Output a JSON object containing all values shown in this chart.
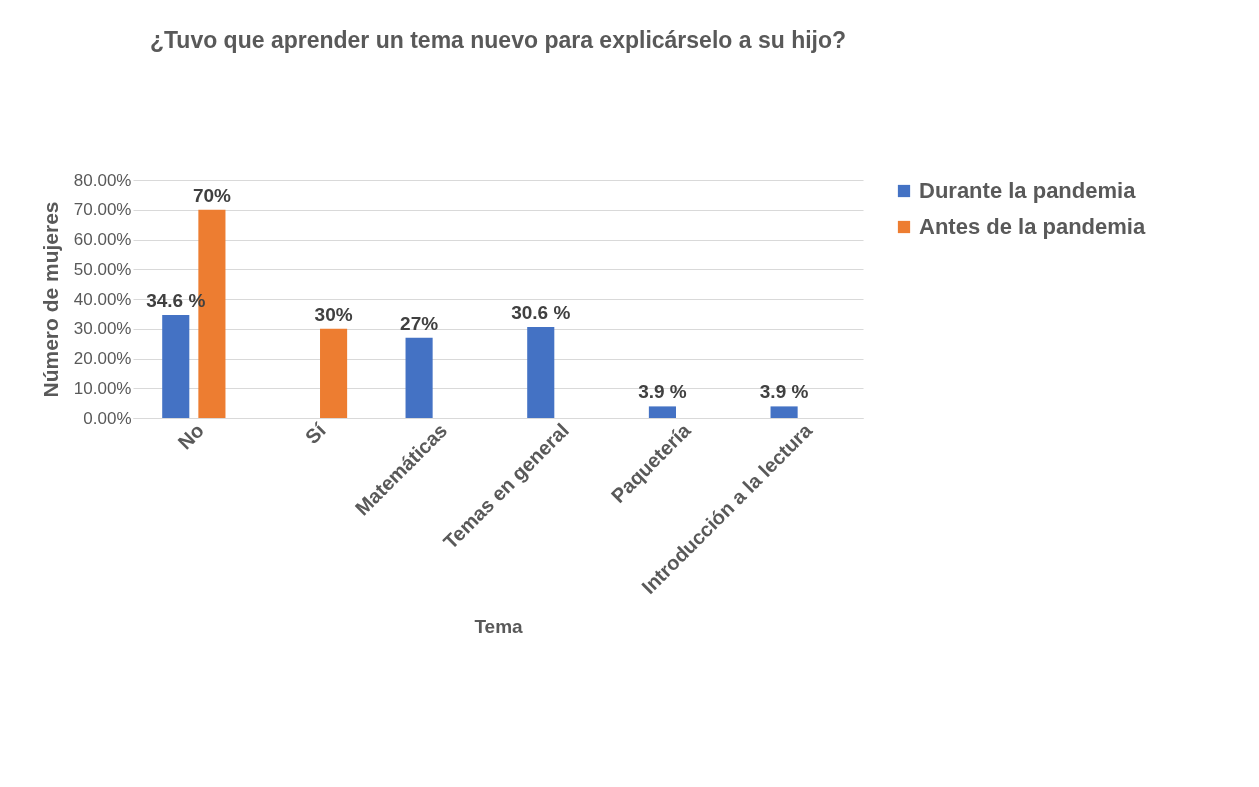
{
  "chart_data": {
    "type": "bar",
    "title": "¿Tuvo que aprender un tema nuevo para explicárselo a su hijo?",
    "xlabel": "Tema",
    "ylabel": "Número de mujeres",
    "categories": [
      "No",
      "Sí",
      "Matemáticas",
      "Temas en general",
      "Paquetería",
      "Introducción a la lectura"
    ],
    "series": [
      {
        "name": "Durante la pandemia",
        "color": "#4472c4",
        "values": [
          34.6,
          null,
          27,
          30.6,
          3.9,
          3.9
        ],
        "value_labels": [
          "34.6 %",
          null,
          "27%",
          "30.6 %",
          "3.9 %",
          "3.9 %"
        ]
      },
      {
        "name": "Antes de la pandemia",
        "color": "#ed7d31",
        "values": [
          70,
          30,
          null,
          null,
          null,
          null
        ],
        "value_labels": [
          "70%",
          "30%",
          null,
          null,
          null,
          null
        ]
      }
    ],
    "ylim": [
      0,
      80
    ],
    "yticks": [
      {
        "value": 0,
        "label": "0.00%"
      },
      {
        "value": 10,
        "label": "10.00%"
      },
      {
        "value": 20,
        "label": "20.00%"
      },
      {
        "value": 30,
        "label": "30.00%"
      },
      {
        "value": 40,
        "label": "40.00%"
      },
      {
        "value": 50,
        "label": "50.00%"
      },
      {
        "value": 60,
        "label": "60.00%"
      },
      {
        "value": 70,
        "label": "70.00%"
      },
      {
        "value": 80,
        "label": "80.00%"
      }
    ],
    "grid": "y",
    "legend": "right"
  }
}
